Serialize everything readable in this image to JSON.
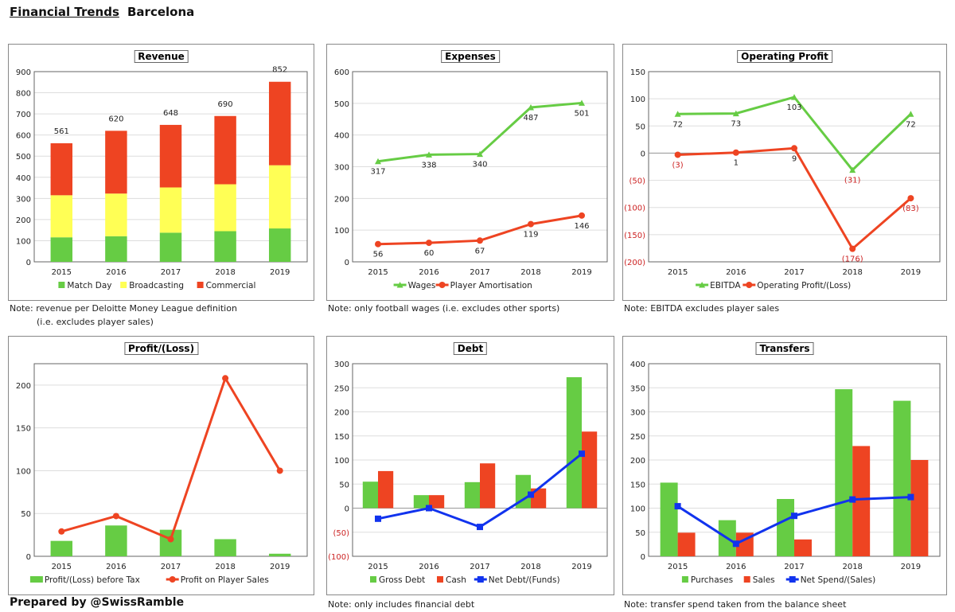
{
  "header": {
    "title": "Financial Trends",
    "club": "Barcelona"
  },
  "credit": "Prepared by @SwissRamble",
  "colors": {
    "green": "#66cc44",
    "yellow": "#ffff55",
    "red": "#ee4422",
    "blue": "#1133ee"
  },
  "chart_data": [
    {
      "type": "bar",
      "stacked": true,
      "title": "Revenue",
      "categories": [
        "2015",
        "2016",
        "2017",
        "2018",
        "2019"
      ],
      "ylim": [
        0,
        900
      ],
      "ticks": [
        0,
        100,
        200,
        300,
        400,
        500,
        600,
        700,
        800,
        900
      ],
      "series": [
        {
          "name": "Match Day",
          "kind": "bar",
          "color": "green",
          "values": [
            116,
            121,
            138,
            145,
            158
          ]
        },
        {
          "name": "Broadcasting",
          "kind": "bar",
          "color": "yellow",
          "values": [
            199,
            202,
            214,
            222,
            299
          ]
        },
        {
          "name": "Commercial",
          "kind": "bar",
          "color": "red",
          "values": [
            246,
            297,
            296,
            323,
            395
          ]
        }
      ],
      "totals": [
        "561",
        "620",
        "648",
        "690",
        "852"
      ],
      "notes": [
        "Note: revenue per Deloitte Money League definition",
        "(i.e. excludes player sales)"
      ]
    },
    {
      "type": "line",
      "title": "Expenses",
      "categories": [
        "2015",
        "2016",
        "2017",
        "2018",
        "2019"
      ],
      "ylim": [
        0,
        600
      ],
      "ticks": [
        0,
        100,
        200,
        300,
        400,
        500,
        600
      ],
      "series": [
        {
          "name": "Wages",
          "kind": "line",
          "marker": "triangle",
          "color": "green",
          "values": [
            317,
            338,
            340,
            487,
            501
          ],
          "labels": [
            "317",
            "338",
            "340",
            "487",
            "501"
          ]
        },
        {
          "name": "Player Amortisation",
          "kind": "line",
          "marker": "circle",
          "color": "red",
          "values": [
            56,
            60,
            67,
            119,
            146
          ],
          "labels": [
            "56",
            "60",
            "67",
            "119",
            "146"
          ]
        }
      ],
      "notes": [
        "Note: only football wages (i.e. excludes other sports)"
      ]
    },
    {
      "type": "line",
      "title": "Operating Profit",
      "categories": [
        "2015",
        "2016",
        "2017",
        "2018",
        "2019"
      ],
      "ylim": [
        -200,
        150
      ],
      "ticks": [
        -200,
        -150,
        -100,
        -50,
        0,
        50,
        100,
        150
      ],
      "series": [
        {
          "name": "EBITDA",
          "kind": "line",
          "marker": "triangle",
          "color": "green",
          "values": [
            72,
            73,
            103,
            -31,
            72
          ],
          "labels": [
            "72",
            "73",
            "103",
            "(31)",
            "72"
          ]
        },
        {
          "name": "Operating Profit/(Loss)",
          "kind": "line",
          "marker": "circle",
          "color": "red",
          "values": [
            -3,
            1,
            9,
            -176,
            -83
          ],
          "labels": [
            "(3)",
            "1",
            "9",
            "(176)",
            "(83)"
          ]
        }
      ],
      "notes": [
        "Note: EBITDA excludes player sales"
      ]
    },
    {
      "type": "bar",
      "title": "Profit/(Loss)",
      "categories": [
        "2015",
        "2016",
        "2017",
        "2018",
        "2019"
      ],
      "ylim": [
        0,
        225
      ],
      "ticks": [
        0,
        50,
        100,
        150,
        200
      ],
      "series": [
        {
          "name": "Profit/(Loss) before Tax",
          "kind": "bar",
          "color": "green",
          "values": [
            18,
            36,
            31,
            20,
            3
          ]
        },
        {
          "name": "Profit on Player Sales",
          "kind": "line",
          "marker": "circle",
          "color": "red",
          "values": [
            29,
            47,
            20,
            208,
            100
          ]
        }
      ],
      "notes": []
    },
    {
      "type": "bar",
      "title": "Debt",
      "categories": [
        "2015",
        "2016",
        "2017",
        "2018",
        "2019"
      ],
      "ylim": [
        -100,
        300
      ],
      "ticks": [
        -100,
        -50,
        0,
        50,
        100,
        150,
        200,
        250,
        300
      ],
      "series": [
        {
          "name": "Gross Debt",
          "kind": "bar",
          "color": "green",
          "values": [
            55,
            27,
            54,
            69,
            272
          ]
        },
        {
          "name": "Cash",
          "kind": "bar",
          "color": "red",
          "values": [
            77,
            27,
            93,
            41,
            159
          ]
        },
        {
          "name": "Net Debt/(Funds)",
          "kind": "line",
          "marker": "square",
          "color": "blue",
          "values": [
            -22,
            0,
            -39,
            28,
            113
          ]
        }
      ],
      "notes": [
        "Note: only includes financial debt"
      ]
    },
    {
      "type": "bar",
      "title": "Transfers",
      "categories": [
        "2015",
        "2016",
        "2017",
        "2018",
        "2019"
      ],
      "ylim": [
        0,
        400
      ],
      "ticks": [
        0,
        50,
        100,
        150,
        200,
        250,
        300,
        350,
        400
      ],
      "series": [
        {
          "name": "Purchases",
          "kind": "bar",
          "color": "green",
          "values": [
            153,
            75,
            119,
            347,
            323
          ]
        },
        {
          "name": "Sales",
          "kind": "bar",
          "color": "red",
          "values": [
            49,
            49,
            35,
            229,
            200
          ]
        },
        {
          "name": "Net Spend/(Sales)",
          "kind": "line",
          "marker": "square",
          "color": "blue",
          "values": [
            104,
            26,
            84,
            118,
            123
          ]
        }
      ],
      "notes": [
        "Note: transfer spend taken from the balance sheet"
      ]
    }
  ]
}
